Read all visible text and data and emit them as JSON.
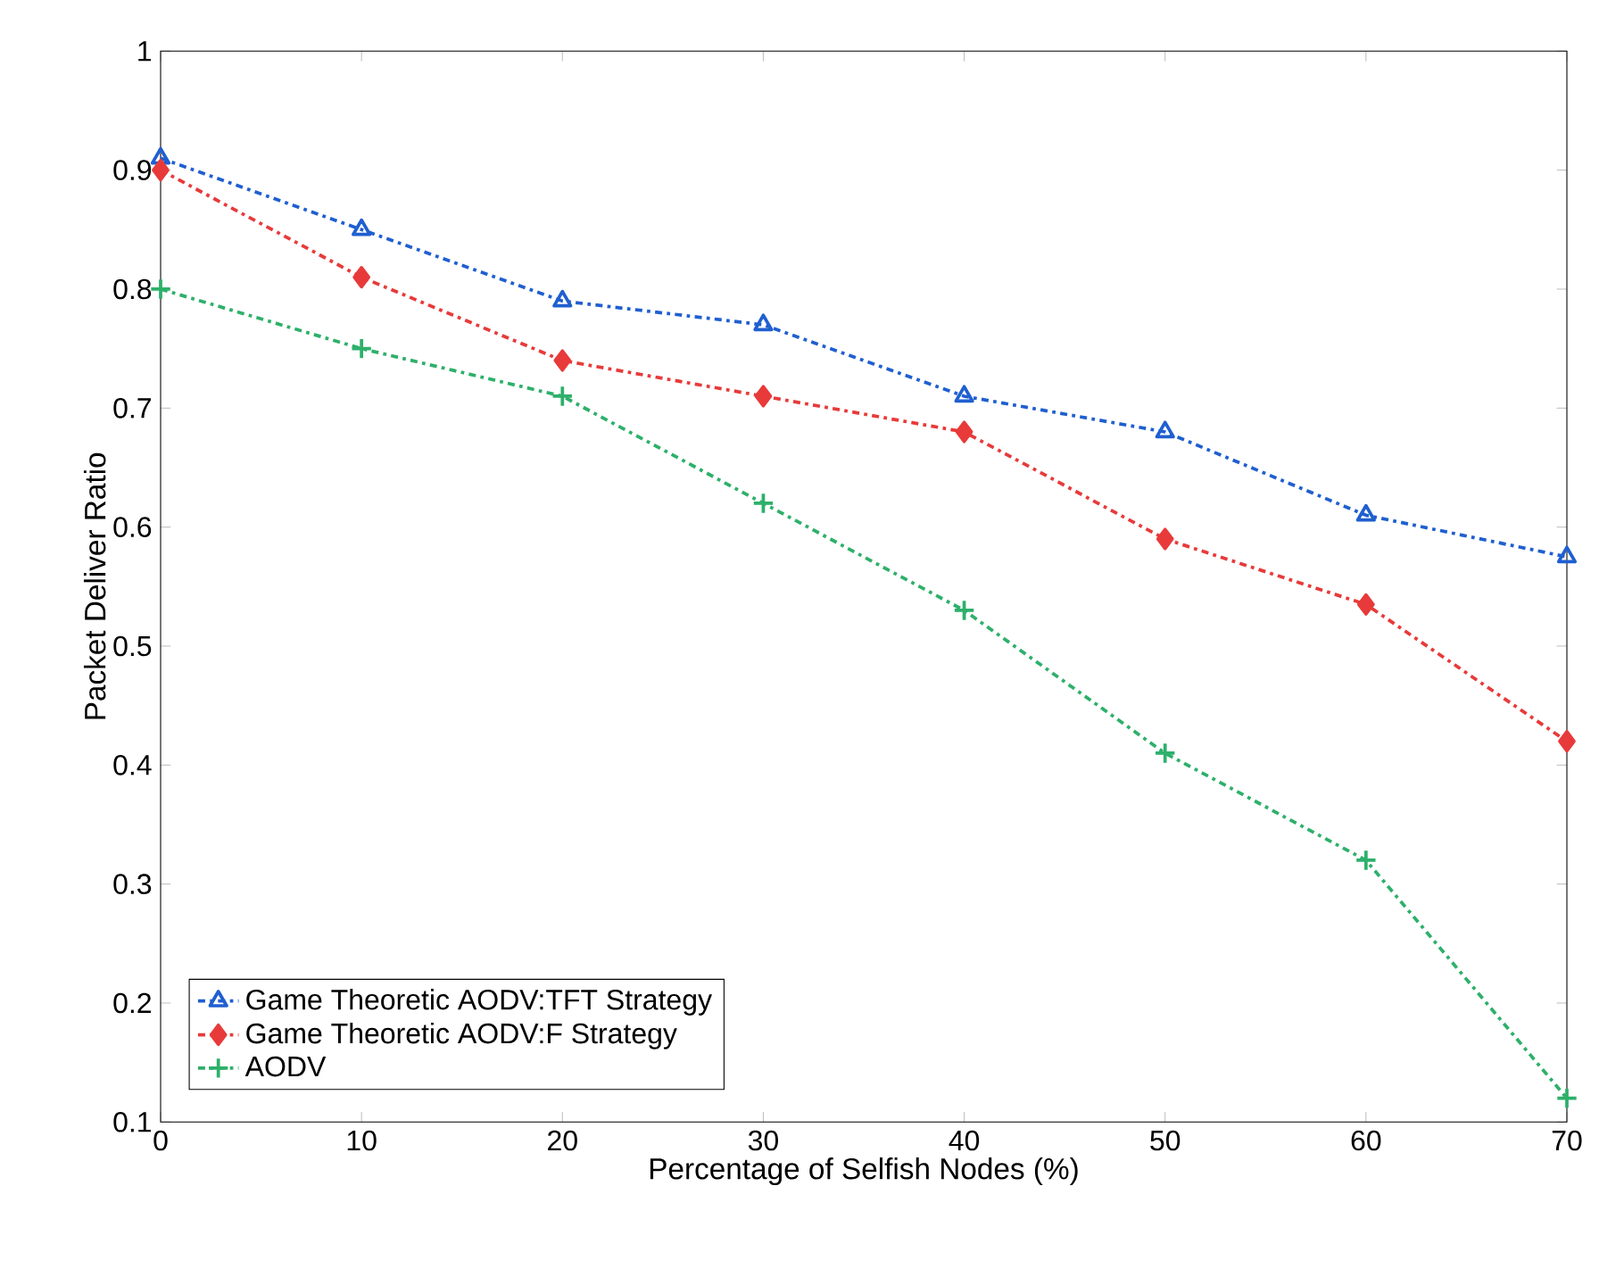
{
  "chart_data": {
    "type": "line",
    "xlabel": "Percentage of Selfish Nodes (%)",
    "ylabel": "Packet Deliver Ratio",
    "x": [
      0,
      10,
      20,
      30,
      40,
      50,
      60,
      70
    ],
    "series": [
      {
        "name": "Game Theoretic AODV:TFT Strategy",
        "color": "#1f5fd0",
        "marker": "triangle",
        "values": [
          0.91,
          0.85,
          0.79,
          0.77,
          0.71,
          0.68,
          0.61,
          0.575
        ]
      },
      {
        "name": "Game Theoretic AODV:F Strategy",
        "color": "#e83a3a",
        "marker": "diamond",
        "values": [
          0.9,
          0.81,
          0.74,
          0.71,
          0.68,
          0.59,
          0.535,
          0.42
        ]
      },
      {
        "name": "AODV",
        "color": "#2db06a",
        "marker": "cross",
        "values": [
          0.8,
          0.75,
          0.71,
          0.62,
          0.53,
          0.41,
          0.32,
          0.12
        ]
      }
    ],
    "xlim": [
      0,
      70
    ],
    "ylim": [
      0.1,
      1
    ],
    "xticks": [
      0,
      10,
      20,
      30,
      40,
      50,
      60,
      70
    ],
    "yticks": [
      0.1,
      0.2,
      0.3,
      0.4,
      0.5,
      0.6,
      0.7,
      0.8,
      0.9,
      1
    ],
    "line_style": "dashed",
    "grid": false,
    "legend": "bottom left"
  }
}
